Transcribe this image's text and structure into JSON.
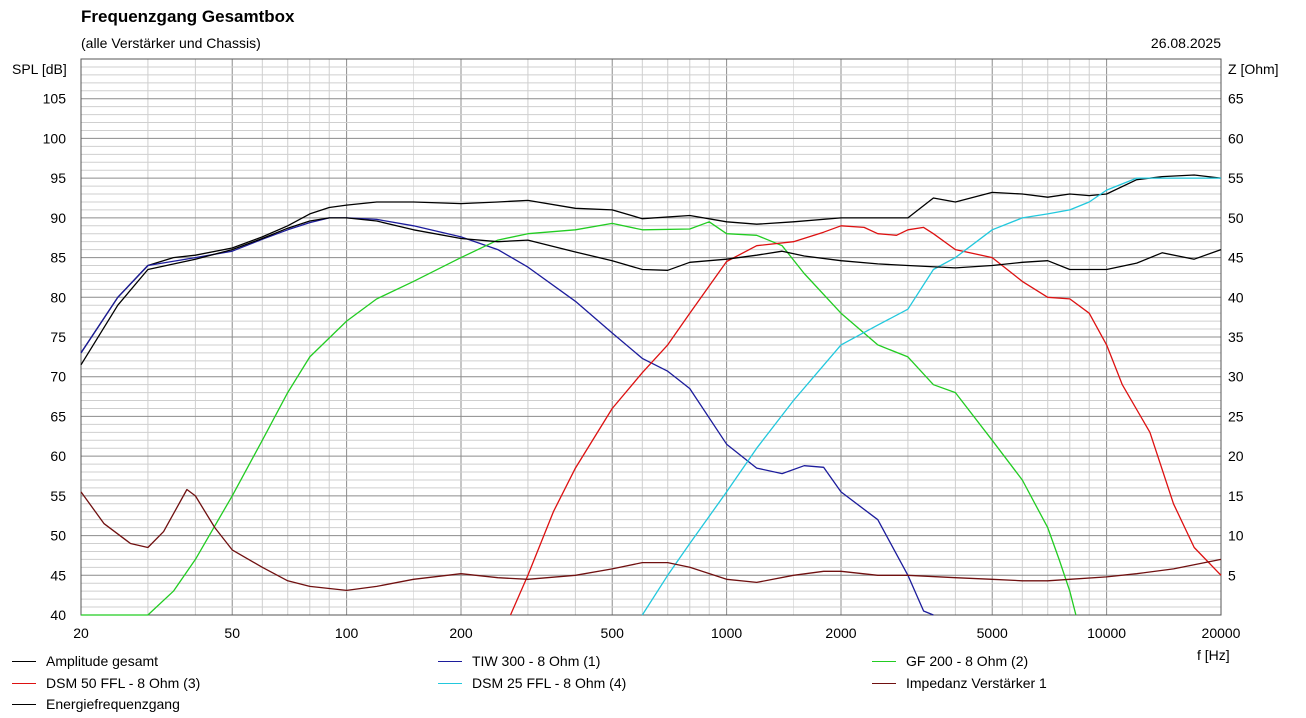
{
  "header": {
    "title": "Frequenzgang Gesamtbox",
    "subtitle": "(alle Verstärker und Chassis)",
    "date": "26.08.2025"
  },
  "axes": {
    "y_left_label": "SPL [dB]",
    "y_right_label": "Z [Ohm]",
    "x_label": "f [Hz]",
    "x_ticks": [
      "20",
      "50",
      "100",
      "200",
      "500",
      "1000",
      "2000",
      "5000",
      "10000",
      "20000"
    ],
    "y_left_ticks": [
      "40",
      "45",
      "50",
      "55",
      "60",
      "65",
      "70",
      "75",
      "80",
      "85",
      "90",
      "95",
      "100",
      "105"
    ],
    "y_right_ticks": [
      "5",
      "10",
      "15",
      "20",
      "25",
      "30",
      "35",
      "40",
      "45",
      "50",
      "55",
      "60",
      "65"
    ]
  },
  "colors": {
    "grid_major": "#8c8c8c",
    "grid_minor": "#cfcfcf",
    "frame": "#555555"
  },
  "chart_data": {
    "type": "line",
    "title": "Frequenzgang Gesamtbox",
    "subtitle": "(alle Verstärker und Chassis)",
    "xlabel": "f [Hz]",
    "ylabel": "SPL [dB]",
    "y2label": "Z [Ohm]",
    "x_scale": "log",
    "xlim": [
      20,
      20000
    ],
    "ylim": [
      40,
      110
    ],
    "y2lim": [
      0,
      70
    ],
    "grid": true,
    "legend_position": "bottom",
    "series": [
      {
        "name": "Amplitude gesamt",
        "color": "#000000",
        "axis": "left",
        "x": [
          20,
          25,
          30,
          35,
          40,
          50,
          60,
          70,
          80,
          90,
          100,
          120,
          150,
          200,
          250,
          300,
          400,
          500,
          600,
          800,
          1000,
          1200,
          1500,
          2000,
          2500,
          3000,
          3500,
          4000,
          5000,
          6000,
          7000,
          8000,
          9000,
          10000,
          12000,
          14000,
          17000,
          20000
        ],
        "y": [
          73,
          80,
          84,
          85,
          85.3,
          86.2,
          87.6,
          89,
          90.5,
          91.3,
          91.6,
          92,
          92,
          91.8,
          92,
          92.2,
          91.2,
          91,
          89.9,
          90.3,
          89.5,
          89.2,
          89.5,
          90,
          90,
          90,
          92.5,
          92,
          93.2,
          93,
          92.6,
          93,
          92.8,
          93,
          94.8,
          95.2,
          95.4,
          95
        ]
      },
      {
        "name": "TIW 300 - 8 Ohm (1)",
        "color": "#1c1c9c",
        "axis": "left",
        "x": [
          20,
          25,
          30,
          40,
          50,
          60,
          70,
          80,
          90,
          100,
          120,
          150,
          200,
          250,
          300,
          400,
          500,
          600,
          700,
          800,
          1000,
          1200,
          1400,
          1600,
          1800,
          2000,
          2500,
          3000,
          3300,
          3500
        ],
        "y": [
          73,
          80,
          84,
          85,
          85.8,
          87.3,
          88.5,
          89.4,
          90,
          90,
          89.8,
          89,
          87.6,
          86,
          83.8,
          79.5,
          75.5,
          72.3,
          70.7,
          68.5,
          61.5,
          58.5,
          57.8,
          58.8,
          58.6,
          55.5,
          52,
          45,
          40.5,
          40
        ]
      },
      {
        "name": "GF 200 - 8 Ohm (2)",
        "color": "#22cc22",
        "axis": "left",
        "x": [
          20,
          25,
          30,
          35,
          40,
          50,
          60,
          70,
          80,
          100,
          120,
          150,
          200,
          250,
          300,
          400,
          500,
          600,
          800,
          900,
          1000,
          1200,
          1400,
          1600,
          2000,
          2500,
          3000,
          3500,
          4000,
          5000,
          6000,
          7000,
          7500,
          8000,
          8300
        ],
        "y": [
          40,
          40,
          40,
          43,
          47,
          55,
          62,
          68,
          72.5,
          77,
          79.8,
          82,
          85,
          87.2,
          88,
          88.5,
          89.3,
          88.5,
          88.6,
          89.5,
          88,
          87.8,
          86.5,
          83,
          78,
          74,
          72.5,
          69,
          68,
          62,
          57,
          51,
          47,
          43,
          40
        ]
      },
      {
        "name": "DSM 50 FFL - 8 Ohm (3)",
        "color": "#dd1111",
        "axis": "left",
        "x": [
          270,
          300,
          350,
          400,
          500,
          600,
          700,
          800,
          1000,
          1200,
          1500,
          1800,
          2000,
          2300,
          2500,
          2800,
          3000,
          3300,
          3500,
          4000,
          5000,
          6000,
          7000,
          8000,
          9000,
          10000,
          11000,
          13000,
          15000,
          17000,
          20000
        ],
        "y": [
          40,
          45,
          53,
          58.5,
          66,
          70.5,
          74,
          78,
          84.5,
          86.5,
          87,
          88.2,
          89,
          88.8,
          88,
          87.8,
          88.5,
          88.8,
          88,
          86,
          85,
          82,
          80,
          79.8,
          78,
          74,
          69,
          63,
          54,
          48.5,
          45
        ]
      },
      {
        "name": "DSM 25 FFL - 8 Ohm (4)",
        "color": "#22c8dd",
        "axis": "left",
        "x": [
          600,
          700,
          800,
          1000,
          1200,
          1500,
          2000,
          2500,
          3000,
          3500,
          4000,
          5000,
          6000,
          7000,
          8000,
          9000,
          10000,
          12000,
          15000,
          20000
        ],
        "y": [
          40,
          45,
          49,
          55.5,
          61,
          67,
          74,
          76.5,
          78.5,
          83.5,
          85,
          88.5,
          90,
          90.5,
          91,
          92,
          93.5,
          95,
          95,
          95
        ]
      },
      {
        "name": "Impedanz Verstärker 1",
        "color": "#701010",
        "axis": "right",
        "x": [
          20,
          23,
          27,
          30,
          33,
          38,
          40,
          45,
          50,
          60,
          70,
          80,
          100,
          120,
          150,
          200,
          250,
          300,
          400,
          500,
          600,
          700,
          800,
          1000,
          1200,
          1500,
          1800,
          2000,
          2500,
          3000,
          4000,
          5000,
          6000,
          7000,
          8000,
          10000,
          12000,
          15000,
          20000
        ],
        "y": [
          15.5,
          11.5,
          9,
          8.5,
          10.5,
          15.8,
          15,
          11,
          8.2,
          6,
          4.3,
          3.6,
          3.1,
          3.6,
          4.5,
          5.2,
          4.7,
          4.5,
          5,
          5.8,
          6.6,
          6.6,
          6,
          4.5,
          4.1,
          5,
          5.5,
          5.5,
          5,
          5,
          4.7,
          4.5,
          4.3,
          4.3,
          4.5,
          4.8,
          5.2,
          5.8,
          7
        ]
      },
      {
        "name": "Energiefrequenzgang",
        "color": "#000000",
        "axis": "left",
        "x": [
          20,
          25,
          30,
          40,
          50,
          60,
          70,
          80,
          90,
          100,
          120,
          150,
          200,
          250,
          300,
          400,
          500,
          600,
          700,
          800,
          1000,
          1200,
          1400,
          1600,
          2000,
          2500,
          3000,
          4000,
          5000,
          6000,
          7000,
          8000,
          9000,
          10000,
          12000,
          14000,
          17000,
          20000
        ],
        "y": [
          71.5,
          79,
          83.5,
          84.8,
          86,
          87.4,
          88.7,
          89.6,
          90,
          90,
          89.6,
          88.5,
          87.4,
          87,
          87.2,
          85.7,
          84.6,
          83.5,
          83.4,
          84.4,
          84.8,
          85.3,
          85.8,
          85.2,
          84.6,
          84.2,
          84,
          83.7,
          84,
          84.4,
          84.6,
          83.5,
          83.5,
          83.5,
          84.3,
          85.6,
          84.8,
          86
        ]
      }
    ]
  },
  "legend": [
    {
      "label": "Amplitude gesamt",
      "color": "#000000"
    },
    {
      "label": "TIW 300 - 8 Ohm (1)",
      "color": "#1c1c9c"
    },
    {
      "label": "GF 200 - 8 Ohm (2)",
      "color": "#22cc22"
    },
    {
      "label": "DSM 50 FFL - 8 Ohm (3)",
      "color": "#dd1111"
    },
    {
      "label": "DSM 25 FFL - 8 Ohm (4)",
      "color": "#22c8dd"
    },
    {
      "label": "Impedanz Verstärker 1",
      "color": "#701010"
    },
    {
      "label": "Energiefrequenzgang",
      "color": "#000000"
    }
  ]
}
